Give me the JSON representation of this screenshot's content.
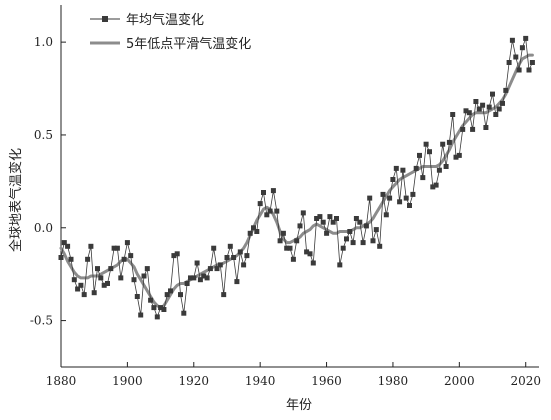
{
  "chart_data": {
    "type": "line",
    "xlabel": "年份",
    "ylabel": "全球地表气温变化",
    "xlim": [
      1880,
      2024
    ],
    "ylim": [
      -0.75,
      1.2
    ],
    "xticks": [
      1880,
      1900,
      1920,
      1940,
      1960,
      1980,
      2000,
      2020
    ],
    "yticks": [
      -0.5,
      0.0,
      0.5,
      1.0
    ],
    "ytick_labels": [
      "-0.5",
      "0.0",
      "0.5",
      "1.0"
    ],
    "grid": false,
    "legend_position": "top-left",
    "colors": {
      "annual": "#3a3a3a",
      "smooth": "#8c8c8c"
    },
    "x": [
      1880,
      1881,
      1882,
      1883,
      1884,
      1885,
      1886,
      1887,
      1888,
      1889,
      1890,
      1891,
      1892,
      1893,
      1894,
      1895,
      1896,
      1897,
      1898,
      1899,
      1900,
      1901,
      1902,
      1903,
      1904,
      1905,
      1906,
      1907,
      1908,
      1909,
      1910,
      1911,
      1912,
      1913,
      1914,
      1915,
      1916,
      1917,
      1918,
      1919,
      1920,
      1921,
      1922,
      1923,
      1924,
      1925,
      1926,
      1927,
      1928,
      1929,
      1930,
      1931,
      1932,
      1933,
      1934,
      1935,
      1936,
      1937,
      1938,
      1939,
      1940,
      1941,
      1942,
      1943,
      1944,
      1945,
      1946,
      1947,
      1948,
      1949,
      1950,
      1951,
      1952,
      1953,
      1954,
      1955,
      1956,
      1957,
      1958,
      1959,
      1960,
      1961,
      1962,
      1963,
      1964,
      1965,
      1966,
      1967,
      1968,
      1969,
      1970,
      1971,
      1972,
      1973,
      1974,
      1975,
      1976,
      1977,
      1978,
      1979,
      1980,
      1981,
      1982,
      1983,
      1984,
      1985,
      1986,
      1987,
      1988,
      1989,
      1990,
      1991,
      1992,
      1993,
      1994,
      1995,
      1996,
      1997,
      1998,
      1999,
      2000,
      2001,
      2002,
      2003,
      2004,
      2005,
      2006,
      2007,
      2008,
      2009,
      2010,
      2011,
      2012,
      2013,
      2014,
      2015,
      2016,
      2017,
      2018,
      2019,
      2020,
      2021,
      2022
    ],
    "series": [
      {
        "name": "年均气温变化",
        "values": [
          -0.16,
          -0.08,
          -0.1,
          -0.17,
          -0.28,
          -0.33,
          -0.31,
          -0.36,
          -0.17,
          -0.1,
          -0.35,
          -0.22,
          -0.27,
          -0.31,
          -0.3,
          -0.22,
          -0.11,
          -0.11,
          -0.27,
          -0.17,
          -0.08,
          -0.15,
          -0.28,
          -0.37,
          -0.47,
          -0.26,
          -0.22,
          -0.39,
          -0.43,
          -0.48,
          -0.43,
          -0.44,
          -0.36,
          -0.34,
          -0.15,
          -0.14,
          -0.36,
          -0.46,
          -0.3,
          -0.27,
          -0.27,
          -0.19,
          -0.28,
          -0.26,
          -0.27,
          -0.22,
          -0.11,
          -0.22,
          -0.2,
          -0.36,
          -0.16,
          -0.1,
          -0.16,
          -0.29,
          -0.13,
          -0.2,
          -0.15,
          -0.03,
          0.0,
          -0.02,
          0.13,
          0.19,
          0.07,
          0.09,
          0.2,
          0.09,
          -0.07,
          -0.03,
          -0.11,
          -0.11,
          -0.17,
          -0.07,
          0.01,
          0.08,
          -0.13,
          -0.14,
          -0.19,
          0.05,
          0.06,
          0.03,
          -0.03,
          0.06,
          0.03,
          0.05,
          -0.2,
          -0.11,
          -0.06,
          -0.02,
          -0.08,
          0.05,
          0.03,
          -0.08,
          0.01,
          0.16,
          -0.07,
          -0.01,
          -0.1,
          0.18,
          0.07,
          0.16,
          0.26,
          0.32,
          0.14,
          0.31,
          0.16,
          0.12,
          0.18,
          0.32,
          0.39,
          0.27,
          0.45,
          0.41,
          0.22,
          0.23,
          0.31,
          0.45,
          0.33,
          0.46,
          0.61,
          0.38,
          0.39,
          0.53,
          0.63,
          0.62,
          0.53,
          0.68,
          0.64,
          0.66,
          0.54,
          0.65,
          0.72,
          0.61,
          0.64,
          0.67,
          0.74,
          0.89,
          1.01,
          0.92,
          0.85,
          0.97,
          1.02,
          0.85,
          0.89
        ]
      },
      {
        "name": "5年低点平滑气温变化",
        "values": [
          -0.11,
          -0.14,
          -0.18,
          -0.21,
          -0.24,
          -0.26,
          -0.27,
          -0.27,
          -0.27,
          -0.26,
          -0.26,
          -0.26,
          -0.25,
          -0.24,
          -0.23,
          -0.22,
          -0.21,
          -0.2,
          -0.18,
          -0.17,
          -0.17,
          -0.19,
          -0.21,
          -0.25,
          -0.28,
          -0.31,
          -0.34,
          -0.37,
          -0.4,
          -0.42,
          -0.43,
          -0.42,
          -0.39,
          -0.36,
          -0.33,
          -0.31,
          -0.3,
          -0.3,
          -0.29,
          -0.28,
          -0.27,
          -0.26,
          -0.25,
          -0.24,
          -0.23,
          -0.22,
          -0.21,
          -0.2,
          -0.2,
          -0.19,
          -0.18,
          -0.17,
          -0.16,
          -0.15,
          -0.13,
          -0.11,
          -0.08,
          -0.04,
          0.0,
          0.04,
          0.07,
          0.1,
          0.11,
          0.1,
          0.07,
          0.03,
          -0.02,
          -0.06,
          -0.08,
          -0.08,
          -0.07,
          -0.06,
          -0.05,
          -0.03,
          -0.02,
          -0.01,
          0.01,
          0.02,
          0.01,
          0.0,
          -0.01,
          -0.02,
          -0.03,
          -0.03,
          -0.02,
          -0.02,
          -0.02,
          -0.02,
          -0.01,
          0.0,
          0.0,
          0.01,
          0.02,
          0.03,
          0.05,
          0.08,
          0.11,
          0.14,
          0.17,
          0.2,
          0.22,
          0.24,
          0.26,
          0.27,
          0.28,
          0.29,
          0.3,
          0.31,
          0.32,
          0.33,
          0.33,
          0.33,
          0.33,
          0.33,
          0.34,
          0.36,
          0.39,
          0.42,
          0.46,
          0.49,
          0.52,
          0.55,
          0.57,
          0.59,
          0.61,
          0.62,
          0.62,
          0.62,
          0.62,
          0.63,
          0.64,
          0.65,
          0.67,
          0.69,
          0.72,
          0.76,
          0.8,
          0.84,
          0.88,
          0.91,
          0.92,
          0.93,
          0.93
        ]
      }
    ]
  }
}
